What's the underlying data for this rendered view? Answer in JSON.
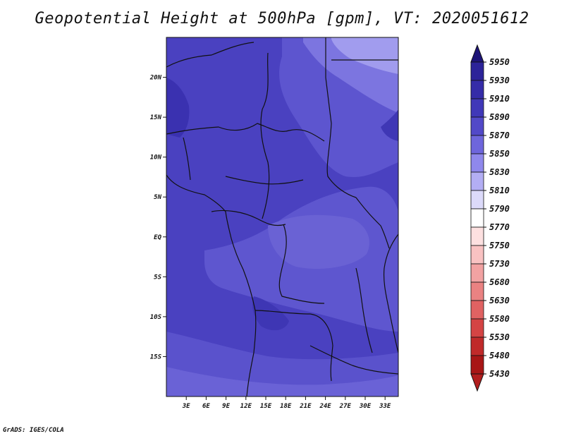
{
  "title": "Geopotential Height at 500hPa [gpm], VT: 2020051612",
  "credit": "GrADS: IGES/COLA",
  "map": {
    "lon_range": [
      0,
      35
    ],
    "lat_range": [
      -20,
      25
    ],
    "lat_ticks": [
      {
        "value": 20,
        "label": "20N"
      },
      {
        "value": 15,
        "label": "15N"
      },
      {
        "value": 10,
        "label": "10N"
      },
      {
        "value": 5,
        "label": "5N"
      },
      {
        "value": 0,
        "label": "EQ"
      },
      {
        "value": -5,
        "label": "5S"
      },
      {
        "value": -10,
        "label": "10S"
      },
      {
        "value": -15,
        "label": "15S"
      }
    ],
    "lon_ticks": [
      {
        "value": 3,
        "label": "3E"
      },
      {
        "value": 6,
        "label": "6E"
      },
      {
        "value": 9,
        "label": "9E"
      },
      {
        "value": 12,
        "label": "12E"
      },
      {
        "value": 15,
        "label": "15E"
      },
      {
        "value": 18,
        "label": "18E"
      },
      {
        "value": 21,
        "label": "21E"
      },
      {
        "value": 24,
        "label": "24E"
      },
      {
        "value": 27,
        "label": "27E"
      },
      {
        "value": 30,
        "label": "30E"
      },
      {
        "value": 33,
        "label": "33E"
      }
    ],
    "colorbar": {
      "levels": [
        {
          "label": "5950",
          "color": "#241a8a"
        },
        {
          "label": "5930",
          "color": "#2c2399"
        },
        {
          "label": "5910",
          "color": "#352ca8"
        },
        {
          "label": "5890",
          "color": "#4038b8"
        },
        {
          "label": "5870",
          "color": "#5249c8"
        },
        {
          "label": "5850",
          "color": "#6e66dc"
        },
        {
          "label": "5830",
          "color": "#8f88ec"
        },
        {
          "label": "5810",
          "color": "#b3aef4"
        },
        {
          "label": "5790",
          "color": "#dcdafa"
        },
        {
          "label": "5770",
          "color": "#ffffff"
        },
        {
          "label": "5750",
          "color": "#fde0e0"
        },
        {
          "label": "5730",
          "color": "#f9c2c2"
        },
        {
          "label": "5680",
          "color": "#f2a2a2"
        },
        {
          "label": "5630",
          "color": "#ea8282"
        },
        {
          "label": "5580",
          "color": "#e06262"
        },
        {
          "label": "5530",
          "color": "#d44444"
        },
        {
          "label": "5480",
          "color": "#c02a2a"
        },
        {
          "label": "5430",
          "color": "#a81616"
        }
      ],
      "top_arrow_color": "#1e1478",
      "bottom_arrow_color": "#b21e1e"
    }
  }
}
